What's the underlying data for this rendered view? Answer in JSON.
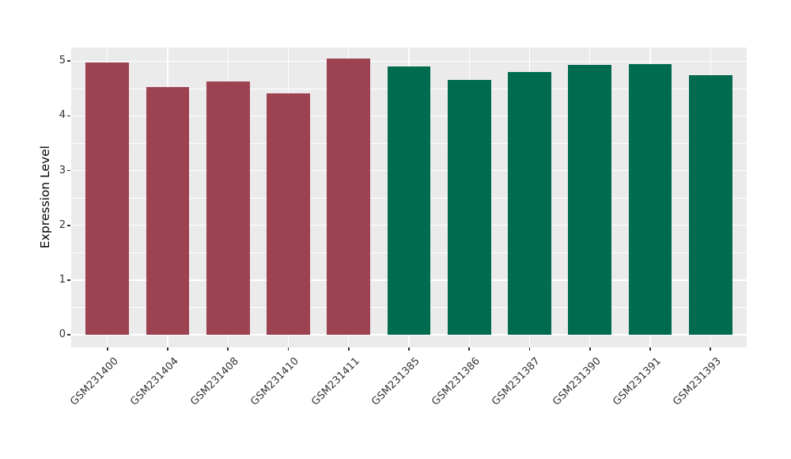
{
  "chart_data": {
    "type": "bar",
    "ylabel": "Expression Level",
    "categories": [
      "GSM231400",
      "GSM231404",
      "GSM231408",
      "GSM231410",
      "GSM231411",
      "GSM231385",
      "GSM231386",
      "GSM231387",
      "GSM231390",
      "GSM231391",
      "GSM231393"
    ],
    "values": [
      4.97,
      4.52,
      4.63,
      4.41,
      5.05,
      4.91,
      4.66,
      4.8,
      4.93,
      4.94,
      4.75
    ],
    "groups": [
      "group1",
      "group1",
      "group1",
      "group1",
      "group1",
      "group2",
      "group2",
      "group2",
      "group2",
      "group2",
      "group2"
    ],
    "group_colors": {
      "group1": "#9C4251",
      "group2": "#006B4E"
    },
    "yticks": [
      0,
      1,
      2,
      3,
      4,
      5
    ],
    "ylim": [
      -0.23,
      5.25
    ],
    "panel_background": "#EBEBEB",
    "grid_color": "#FFFFFF",
    "tick_color": "#333333",
    "axis_text_color": "#333333",
    "grid": "horizontal major+minor, vertical major at category centers",
    "legend_position": "none"
  }
}
